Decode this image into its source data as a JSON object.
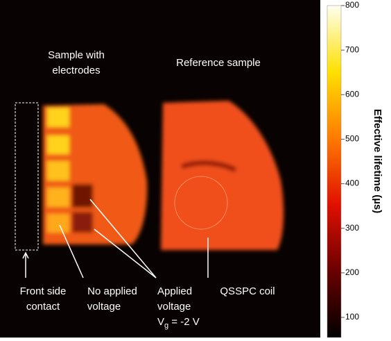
{
  "annotations": {
    "sample_left": [
      "Sample with",
      "electrodes"
    ],
    "sample_right": "Reference sample",
    "front_contact": [
      "Front side",
      "contact"
    ],
    "no_voltage": [
      "No applied",
      "voltage"
    ],
    "applied": [
      "Applied",
      "voltage"
    ],
    "applied_vg": {
      "main": "V",
      "sub": "g",
      "rest": " = -2 V"
    },
    "coil": "QSSPC coil"
  },
  "colorbar": {
    "label": "Effective lifetime (µs)",
    "ticks": [
      100,
      200,
      300,
      400,
      500,
      600,
      700,
      800
    ]
  }
}
